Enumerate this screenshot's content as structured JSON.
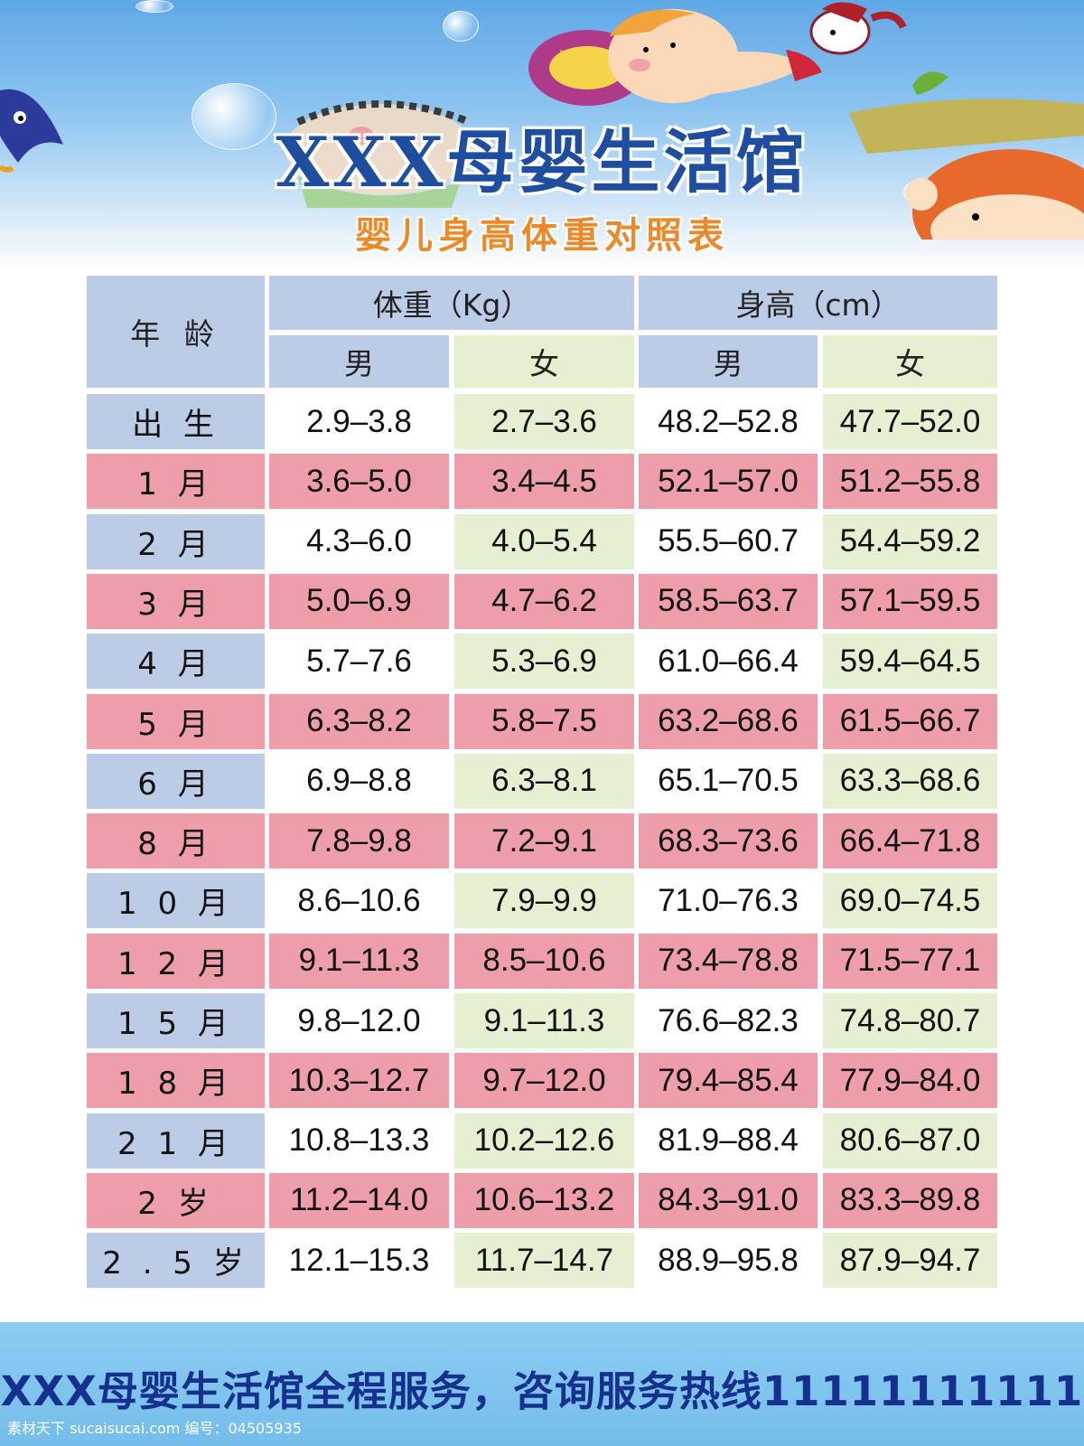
{
  "header": {
    "title": "XXX母婴生活馆",
    "subtitle": "婴儿身高体重对照表"
  },
  "table": {
    "col_age": "年 龄",
    "col_weight": "体重（Kg）",
    "col_height": "身高（cm）",
    "male": "男",
    "female": "女",
    "rows": [
      {
        "age": "出 生",
        "wm": "2.9–3.8",
        "wf": "2.7–3.6",
        "hm": "48.2–52.8",
        "hf": "47.7–52.0"
      },
      {
        "age": "1 月",
        "wm": "3.6–5.0",
        "wf": "3.4–4.5",
        "hm": "52.1–57.0",
        "hf": "51.2–55.8"
      },
      {
        "age": "2 月",
        "wm": "4.3–6.0",
        "wf": "4.0–5.4",
        "hm": "55.5–60.7",
        "hf": "54.4–59.2"
      },
      {
        "age": "3 月",
        "wm": "5.0–6.9",
        "wf": "4.7–6.2",
        "hm": "58.5–63.7",
        "hf": "57.1–59.5"
      },
      {
        "age": "4 月",
        "wm": "5.7–7.6",
        "wf": "5.3–6.9",
        "hm": "61.0–66.4",
        "hf": "59.4–64.5"
      },
      {
        "age": "5 月",
        "wm": "6.3–8.2",
        "wf": "5.8–7.5",
        "hm": "63.2–68.6",
        "hf": "61.5–66.7"
      },
      {
        "age": "6 月",
        "wm": "6.9–8.8",
        "wf": "6.3–8.1",
        "hm": "65.1–70.5",
        "hf": "63.3–68.6"
      },
      {
        "age": "8 月",
        "wm": "7.8–9.8",
        "wf": "7.2–9.1",
        "hm": "68.3–73.6",
        "hf": "66.4–71.8"
      },
      {
        "age": "1 0 月",
        "wm": "8.6–10.6",
        "wf": "7.9–9.9",
        "hm": "71.0–76.3",
        "hf": "69.0–74.5"
      },
      {
        "age": "1 2 月",
        "wm": "9.1–11.3",
        "wf": "8.5–10.6",
        "hm": "73.4–78.8",
        "hf": "71.5–77.1"
      },
      {
        "age": "1 5 月",
        "wm": "9.8–12.0",
        "wf": "9.1–11.3",
        "hm": "76.6–82.3",
        "hf": "74.8–80.7"
      },
      {
        "age": "1 8 月",
        "wm": "10.3–12.7",
        "wf": "9.7–12.0",
        "hm": "79.4–85.4",
        "hf": "77.9–84.0"
      },
      {
        "age": "2 1 月",
        "wm": "10.8–13.3",
        "wf": "10.2–12.6",
        "hm": "81.9–88.4",
        "hf": "80.6–87.0"
      },
      {
        "age": "2 岁",
        "wm": "11.2–14.0",
        "wf": "10.6–13.2",
        "hm": "84.3–91.0",
        "hf": "83.3–89.8"
      },
      {
        "age": "2 . 5 岁",
        "wm": "12.1–15.3",
        "wf": "11.7–14.7",
        "hm": "88.9–95.8",
        "hf": "87.9–94.7"
      }
    ]
  },
  "footer": {
    "text": "XXX母婴生活馆全程服务，咨询服务热线11111111111"
  },
  "watermark": {
    "text": "素材天下 sucaisucai.com  编号：04505935"
  },
  "colors": {
    "blue_cell": "#bccbe6",
    "pink_cell": "#ee9ea9",
    "green_cell": "#e4f0cf",
    "title": "#1f4ea0",
    "subtitle": "#ec8a2a"
  }
}
